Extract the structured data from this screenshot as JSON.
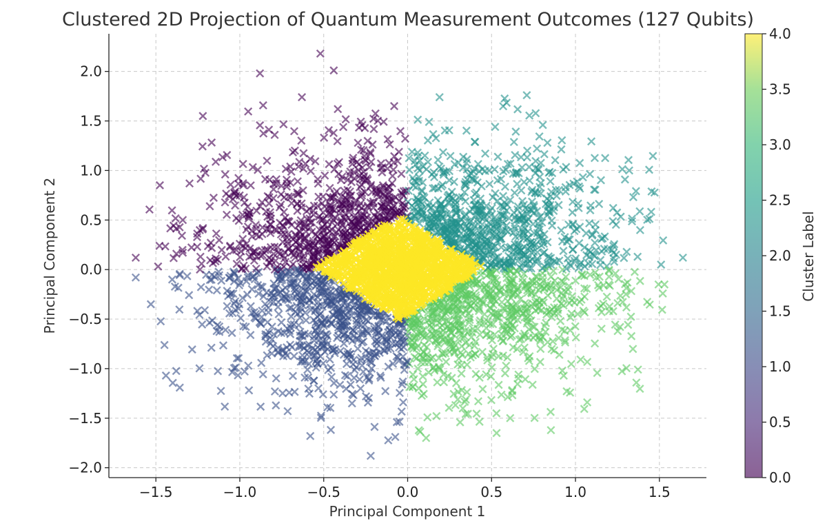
{
  "chart_data": {
    "type": "scatter",
    "title": "Clustered 2D Projection of Quantum Measurement Outcomes (127 Qubits)",
    "xlabel": "Principal Component 1",
    "ylabel": "Principal Component 2",
    "xlim": [
      -1.78,
      1.78
    ],
    "ylim": [
      -2.1,
      2.38
    ],
    "xticks": [
      -1.5,
      -1.0,
      -0.5,
      0.0,
      0.5,
      1.0,
      1.5
    ],
    "xtick_labels": [
      "−1.5",
      "−1.0",
      "−0.5",
      "0.0",
      "0.5",
      "1.0",
      "1.5"
    ],
    "yticks": [
      -2.0,
      -1.5,
      -1.0,
      -0.5,
      0.0,
      0.5,
      1.0,
      1.5,
      2.0
    ],
    "ytick_labels": [
      "−2.0",
      "−1.5",
      "−1.0",
      "−0.5",
      "0.0",
      "0.5",
      "1.0",
      "1.5",
      "2.0"
    ],
    "grid": true,
    "marker": "x",
    "colorbar": {
      "label": "Cluster Label",
      "range": [
        0.0,
        4.0
      ],
      "ticks": [
        0.0,
        0.5,
        1.0,
        1.5,
        2.0,
        2.5,
        3.0,
        3.5,
        4.0
      ],
      "tick_labels": [
        "0.0",
        "0.5",
        "1.0",
        "1.5",
        "2.0",
        "2.5",
        "3.0",
        "3.5",
        "4.0"
      ],
      "colormap": "viridis"
    },
    "clusters": [
      {
        "label": 0,
        "color": "#440154",
        "region": "upper-left quadrant",
        "x_range": [
          -1.4,
          0.0
        ],
        "y_range": [
          0.0,
          2.2
        ]
      },
      {
        "label": 1,
        "color": "#3b528b",
        "region": "lower-left quadrant",
        "x_range": [
          -1.6,
          0.05
        ],
        "y_range": [
          -1.9,
          0.0
        ]
      },
      {
        "label": 2,
        "color": "#21918c",
        "region": "upper-right quadrant",
        "x_range": [
          0.0,
          1.65
        ],
        "y_range": [
          0.0,
          1.8
        ]
      },
      {
        "label": 3,
        "color": "#5ec962",
        "region": "lower-right quadrant",
        "x_range": [
          0.05,
          1.55
        ],
        "y_range": [
          -1.7,
          0.0
        ]
      },
      {
        "label": 4,
        "color": "#fde725",
        "region": "center diamond",
        "x_range": [
          -0.55,
          0.45
        ],
        "y_range": [
          -0.5,
          0.55
        ]
      }
    ],
    "outliers": [
      {
        "x": -0.52,
        "y": 2.18,
        "cluster": 0
      },
      {
        "x": -0.44,
        "y": 2.01,
        "cluster": 0
      },
      {
        "x": -0.88,
        "y": 1.98,
        "cluster": 0
      },
      {
        "x": -0.08,
        "y": 1.65,
        "cluster": 0
      },
      {
        "x": -1.22,
        "y": 1.55,
        "cluster": 0
      },
      {
        "x": -0.63,
        "y": 1.74,
        "cluster": 0
      },
      {
        "x": -1.62,
        "y": 0.12,
        "cluster": 0
      },
      {
        "x": -1.34,
        "y": 0.5,
        "cluster": 0
      },
      {
        "x": -1.62,
        "y": -0.08,
        "cluster": 1
      },
      {
        "x": -1.44,
        "y": -1.07,
        "cluster": 1
      },
      {
        "x": -0.22,
        "y": -1.88,
        "cluster": 1
      },
      {
        "x": -0.58,
        "y": -1.68,
        "cluster": 1
      },
      {
        "x": 0.71,
        "y": 1.76,
        "cluster": 2
      },
      {
        "x": 0.19,
        "y": 1.74,
        "cluster": 2
      },
      {
        "x": 1.64,
        "y": 0.12,
        "cluster": 2
      },
      {
        "x": 1.51,
        "y": 0.05,
        "cluster": 2
      },
      {
        "x": 1.32,
        "y": 1.0,
        "cluster": 2
      },
      {
        "x": 0.53,
        "y": -1.65,
        "cluster": 3
      },
      {
        "x": 0.11,
        "y": -1.7,
        "cluster": 3
      },
      {
        "x": 1.53,
        "y": -0.15,
        "cluster": 3
      },
      {
        "x": 1.07,
        "y": -1.34,
        "cluster": 3
      }
    ]
  }
}
